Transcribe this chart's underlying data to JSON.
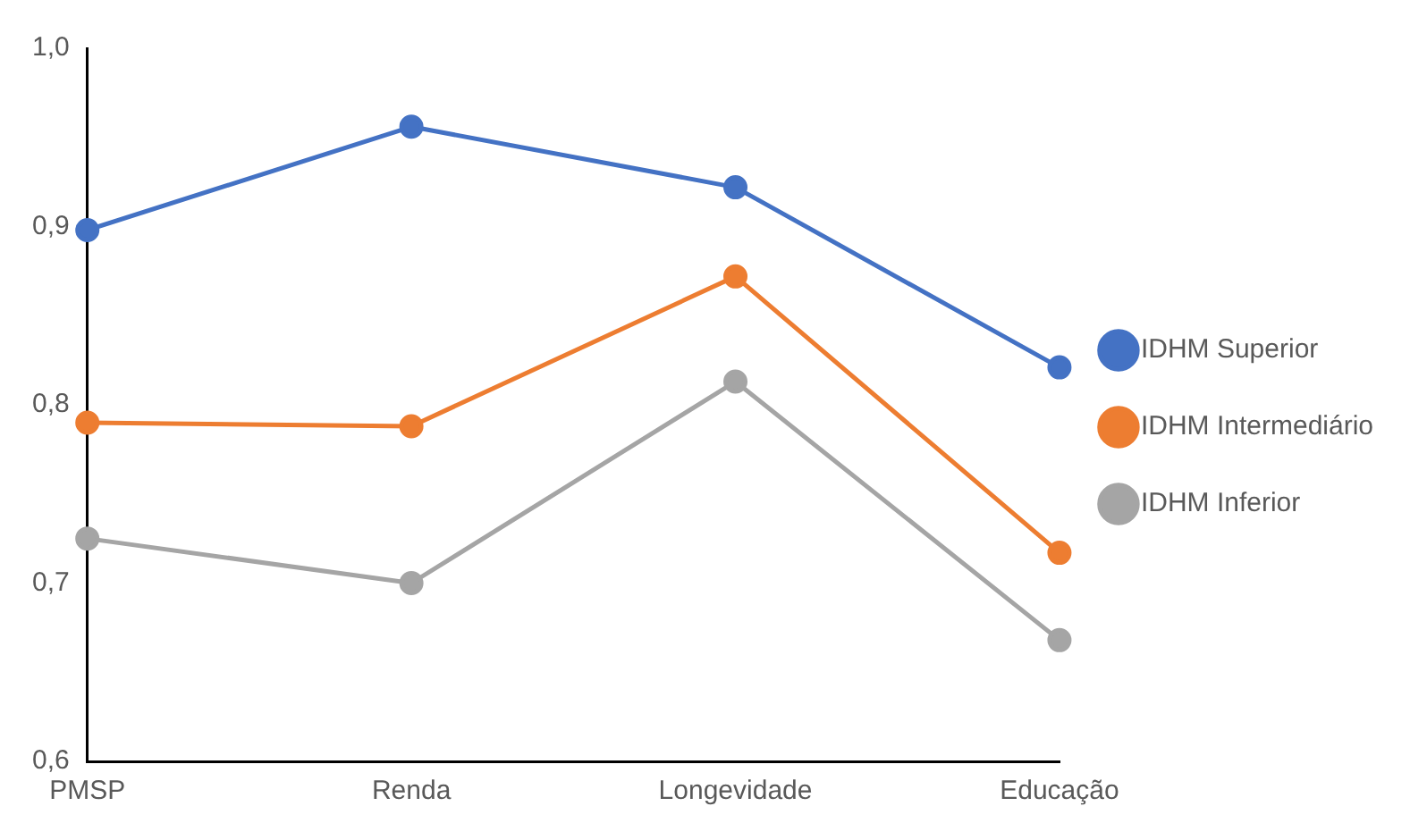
{
  "chart_data": {
    "type": "line",
    "categories": [
      "PMSP",
      "Renda",
      "Longevidade",
      "Educação"
    ],
    "series": [
      {
        "name": "IDHM Superior",
        "color": "#4472c4",
        "values": [
          0.898,
          0.956,
          0.922,
          0.821
        ]
      },
      {
        "name": "IDHM Intermediário",
        "color": "#ed7d31",
        "values": [
          0.79,
          0.788,
          0.872,
          0.717
        ]
      },
      {
        "name": "IDHM Inferior",
        "color": "#a5a5a5",
        "values": [
          0.725,
          0.7,
          0.813,
          0.668
        ]
      }
    ],
    "ylim": [
      0.6,
      1.0
    ],
    "yticks": [
      {
        "value": 0.6,
        "label": "0,6"
      },
      {
        "value": 0.7,
        "label": "0,7"
      },
      {
        "value": 0.8,
        "label": "0,8"
      },
      {
        "value": 0.9,
        "label": "0,9"
      },
      {
        "value": 1.0,
        "label": "1,0"
      }
    ],
    "grid": false,
    "legend": "right",
    "marker": "circle",
    "line_style": "solid"
  }
}
